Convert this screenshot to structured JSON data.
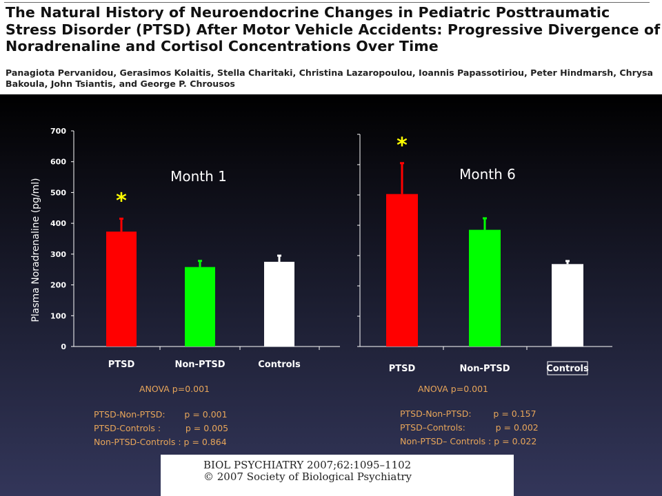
{
  "paper": {
    "title": "The Natural History of Neuroendocrine Changes in Pediatric Posttraumatic Stress Disorder (PTSD) After Motor Vehicle Accidents: Progressive Divergence of Noradrenaline and Cortisol Concentrations Over Time",
    "authors": "Panagiota Pervanidou, Gerasimos Kolaitis, Stella Charitaki, Christina Lazaropoulou, Ioannis Papassotiriou, Peter Hindmarsh, Chrysa Bakoula, John Tsiantis, and George P. Chrousos"
  },
  "colors": {
    "ptsd": "#ff0000",
    "non_ptsd": "#00ff00",
    "controls": "#ffffff",
    "asterisk": "#ffff00",
    "stats": "#e8a65a"
  },
  "chart_data": [
    {
      "type": "bar",
      "title": "Month  1",
      "ylabel": "Plasma Noradrenaline  (pg/ml)",
      "categories": [
        "PTSD",
        "Non-PTSD",
        "Controls"
      ],
      "values": [
        373,
        258,
        275
      ],
      "error_upper": [
        415,
        278,
        295
      ],
      "significant": [
        true,
        false,
        false
      ],
      "significance_marker": "*",
      "ylim": [
        0,
        700
      ],
      "yticks": [
        0,
        100,
        200,
        300,
        400,
        500,
        600,
        700
      ],
      "ytick_labels": [
        "0",
        "100",
        "200",
        "300",
        "400",
        "500",
        "600",
        "700"
      ],
      "grid": false
    },
    {
      "type": "bar",
      "title": "Month 6",
      "categories": [
        "PTSD",
        "Non-PTSD",
        "Controls"
      ],
      "values": [
        503,
        385,
        272
      ],
      "error_upper": [
        605,
        423,
        282
      ],
      "significant": [
        true,
        false,
        false
      ],
      "significance_marker": "*",
      "ylim": [
        0,
        700
      ],
      "yticks": [
        0,
        100,
        200,
        300,
        400,
        500,
        600,
        700
      ],
      "grid": false
    }
  ],
  "stats_left": {
    "anova": "ANOVA p=0.001",
    "lines": [
      "PTSD-Non-PTSD:       p = 0.001",
      "PTSD-Controls :         p = 0.005",
      "Non-PTSD-Controls : p = 0.864"
    ]
  },
  "stats_right": {
    "anova": "ANOVA p=0.001",
    "lines": [
      "PTSD-Non-PTSD:        p = 0.157",
      "PTSD–Controls:           p = 0.002",
      "Non-PTSD– Controls : p = 0.022"
    ]
  },
  "citation": {
    "journal": "BIOL PSYCHIATRY 2007;62:1095–1102",
    "copyright": "© 2007 Society of Biological Psychiatry"
  }
}
